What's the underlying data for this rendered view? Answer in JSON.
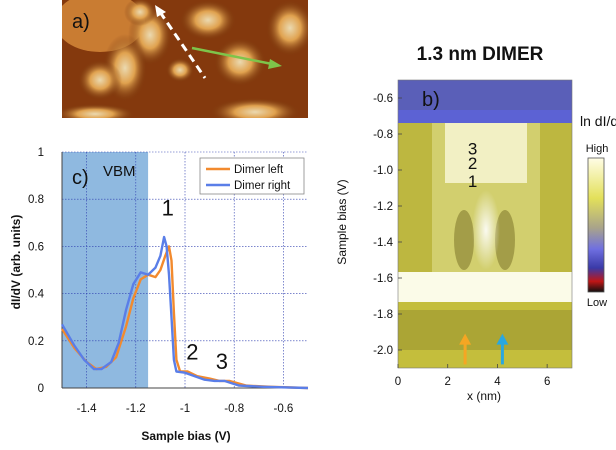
{
  "panels": {
    "a_label": "a)",
    "b_label": "b)",
    "c_label": "c)"
  },
  "chart_data": [
    {
      "type": "line",
      "panel": "c",
      "xlabel": "Sample bias (V)",
      "ylabel": "dI/dV (arb. units)",
      "xlim": [
        -1.5,
        -0.5
      ],
      "ylim": [
        0,
        1
      ],
      "x_ticks": [
        -1.4,
        -1.2,
        -1.0,
        -0.8,
        -0.6
      ],
      "x_tick_labels": [
        "-1.4",
        "-1.2",
        "-1",
        "-0.8",
        "-0.6"
      ],
      "y_ticks": [
        0,
        0.2,
        0.4,
        0.6,
        0.8,
        1
      ],
      "y_tick_labels": [
        "0",
        "0.2",
        "0.4",
        "0.6",
        "0.8",
        "1"
      ],
      "grid": true,
      "legend_position": "top-right",
      "shaded_region": {
        "x_from": -1.5,
        "x_to": -1.15,
        "color": "#8fb9e0"
      },
      "vbm_label": "VBM",
      "peak_labels": [
        {
          "text": "1",
          "x": -1.07,
          "y": 0.73
        },
        {
          "text": "2",
          "x": -0.97,
          "y": 0.12
        },
        {
          "text": "3",
          "x": -0.85,
          "y": 0.08
        }
      ],
      "series": [
        {
          "name": "Dimer left",
          "color": "#f28a2e",
          "points": [
            [
              -1.5,
              0.25
            ],
            [
              -1.45,
              0.17
            ],
            [
              -1.4,
              0.11
            ],
            [
              -1.36,
              0.08
            ],
            [
              -1.32,
              0.09
            ],
            [
              -1.28,
              0.13
            ],
            [
              -1.24,
              0.26
            ],
            [
              -1.21,
              0.38
            ],
            [
              -1.18,
              0.46
            ],
            [
              -1.15,
              0.48
            ],
            [
              -1.12,
              0.47
            ],
            [
              -1.1,
              0.5
            ],
            [
              -1.08,
              0.56
            ],
            [
              -1.065,
              0.6
            ],
            [
              -1.055,
              0.54
            ],
            [
              -1.045,
              0.32
            ],
            [
              -1.035,
              0.12
            ],
            [
              -1.02,
              0.07
            ],
            [
              -0.99,
              0.07
            ],
            [
              -0.95,
              0.05
            ],
            [
              -0.9,
              0.04
            ],
            [
              -0.86,
              0.03
            ],
            [
              -0.82,
              0.03
            ],
            [
              -0.75,
              0.01
            ],
            [
              -0.65,
              0.005
            ],
            [
              -0.5,
              0.0
            ]
          ]
        },
        {
          "name": "Dimer right",
          "color": "#5a7ee8",
          "points": [
            [
              -1.5,
              0.27
            ],
            [
              -1.45,
              0.18
            ],
            [
              -1.41,
              0.12
            ],
            [
              -1.37,
              0.08
            ],
            [
              -1.34,
              0.08
            ],
            [
              -1.3,
              0.11
            ],
            [
              -1.27,
              0.19
            ],
            [
              -1.24,
              0.33
            ],
            [
              -1.21,
              0.44
            ],
            [
              -1.18,
              0.49
            ],
            [
              -1.15,
              0.48
            ],
            [
              -1.12,
              0.51
            ],
            [
              -1.1,
              0.56
            ],
            [
              -1.085,
              0.64
            ],
            [
              -1.075,
              0.6
            ],
            [
              -1.065,
              0.48
            ],
            [
              -1.055,
              0.3
            ],
            [
              -1.045,
              0.12
            ],
            [
              -1.035,
              0.07
            ],
            [
              -1.0,
              0.065
            ],
            [
              -0.96,
              0.05
            ],
            [
              -0.92,
              0.035
            ],
            [
              -0.88,
              0.03
            ],
            [
              -0.84,
              0.03
            ],
            [
              -0.78,
              0.01
            ],
            [
              -0.68,
              0.005
            ],
            [
              -0.5,
              0.0
            ]
          ]
        }
      ]
    },
    {
      "type": "heatmap",
      "panel": "b",
      "title": "1.3 nm DIMER",
      "xlabel": "x (nm)",
      "ylabel": "Sample bias (V)",
      "xlim": [
        0,
        7
      ],
      "ylim": [
        -2.1,
        -0.5
      ],
      "x_ticks": [
        0,
        2,
        4,
        6
      ],
      "x_tick_labels": [
        "0",
        "2",
        "4",
        "6"
      ],
      "y_ticks": [
        -0.6,
        -0.8,
        -1.0,
        -1.2,
        -1.4,
        -1.6,
        -1.8,
        -2.0
      ],
      "y_tick_labels": [
        "-0.6",
        "-0.8",
        "-1.0",
        "-1.2",
        "-1.4",
        "-1.6",
        "-1.8",
        "-2.0"
      ],
      "colorbar": {
        "title": "ln dI/dV",
        "high_label": "High",
        "low_label": "Low"
      },
      "state_labels": [
        "3",
        "2",
        "1"
      ],
      "arrows": [
        {
          "x": 2.7,
          "color": "#f5a623"
        },
        {
          "x": 4.2,
          "color": "#2aa7df"
        }
      ]
    }
  ]
}
